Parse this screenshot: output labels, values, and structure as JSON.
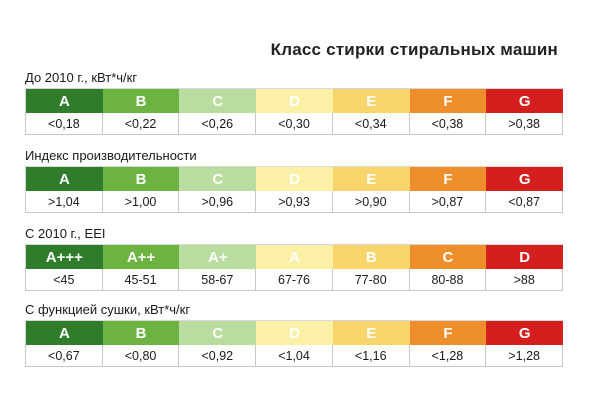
{
  "title": "Класс стирки стиральных машин",
  "colors": [
    "#2f7d2a",
    "#6cb342",
    "#b9dd9f",
    "#fcf0a6",
    "#f7d56a",
    "#ee8f2b",
    "#d51f1f"
  ],
  "sections": [
    {
      "label": "До 2010 г., кВт*ч/кг",
      "classes": [
        "A",
        "B",
        "C",
        "D",
        "E",
        "F",
        "G"
      ],
      "values": [
        "<0,18",
        "<0,22",
        "<0,26",
        "<0,30",
        "<0,34",
        "<0,38",
        ">0,38"
      ]
    },
    {
      "label": "Индекс производительности",
      "classes": [
        "A",
        "B",
        "C",
        "D",
        "E",
        "F",
        "G"
      ],
      "values": [
        ">1,04",
        ">1,00",
        ">0,96",
        ">0,93",
        ">0,90",
        ">0,87",
        "<0,87"
      ]
    },
    {
      "label": "С 2010 г., EEI",
      "classes": [
        "A+++",
        "A++",
        "A+",
        "A",
        "B",
        "C",
        "D"
      ],
      "values": [
        "<45",
        "45-51",
        "58-67",
        "67-76",
        "77-80",
        "80-88",
        ">88"
      ]
    },
    {
      "label": "С функцией сушки, кВт*ч/кг",
      "classes": [
        "A",
        "B",
        "C",
        "D",
        "E",
        "F",
        "G"
      ],
      "values": [
        "<0,67",
        "<0,80",
        "<0,92",
        "<1,04",
        "<1,16",
        "<1,28",
        ">1,28"
      ]
    }
  ]
}
